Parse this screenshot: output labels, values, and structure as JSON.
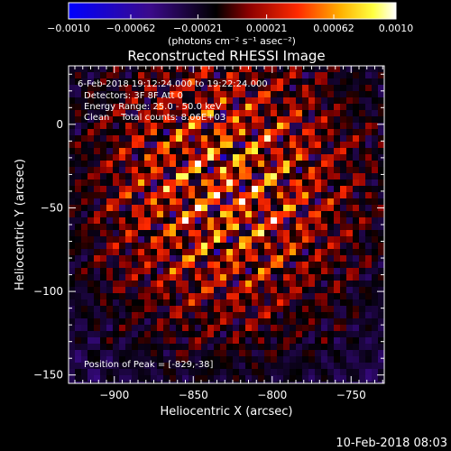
{
  "chart_data": {
    "type": "heatmap",
    "title": "Reconstructed RHESSI Image",
    "xlabel": "Heliocentric X (arcsec)",
    "ylabel": "Heliocentric Y (arcsec)",
    "x_range": [
      -929,
      -729
    ],
    "y_range": [
      -155,
      35
    ],
    "x_ticks": [
      -900,
      -850,
      -800,
      -750
    ],
    "y_ticks": [
      0,
      -50,
      -100,
      -150
    ],
    "x_tick_labels": [
      "−900",
      "−850",
      "−800",
      "−750"
    ],
    "y_tick_labels": [
      "0",
      "−50",
      "−100",
      "−150"
    ],
    "colorbar": {
      "range": [
        -0.001,
        0.001
      ],
      "ticks": [
        -0.001,
        -0.00062,
        -0.00021,
        0.00021,
        0.00062,
        0.001
      ],
      "tick_labels": [
        "−0.0010",
        "−0.00062",
        "−0.00021",
        "0.00021",
        "0.00062",
        "0.0010"
      ],
      "units_label": "(photons cm⁻² s⁻¹ asec⁻²)",
      "colormap_stops": [
        "#0000ff",
        "#3b0a8a",
        "#000000",
        "#8b0000",
        "#ff2a00",
        "#ffb000",
        "#ffff40",
        "#ffffff"
      ]
    },
    "annotations": {
      "time_range": "6-Feb-2018 19:12:24.000 to 19:22:24.000",
      "detectors": "Detectors: 3F 8F  Att 0",
      "energy": "Energy Range: 25.0 - 50.0 keV",
      "clean": "Clean    Total counts: 8.06E+03",
      "peak": "Position of Peak = [-829,-38]"
    },
    "peak_position": [
      -829,
      -38
    ],
    "footer_timestamp": "10-Feb-2018 08:03"
  }
}
